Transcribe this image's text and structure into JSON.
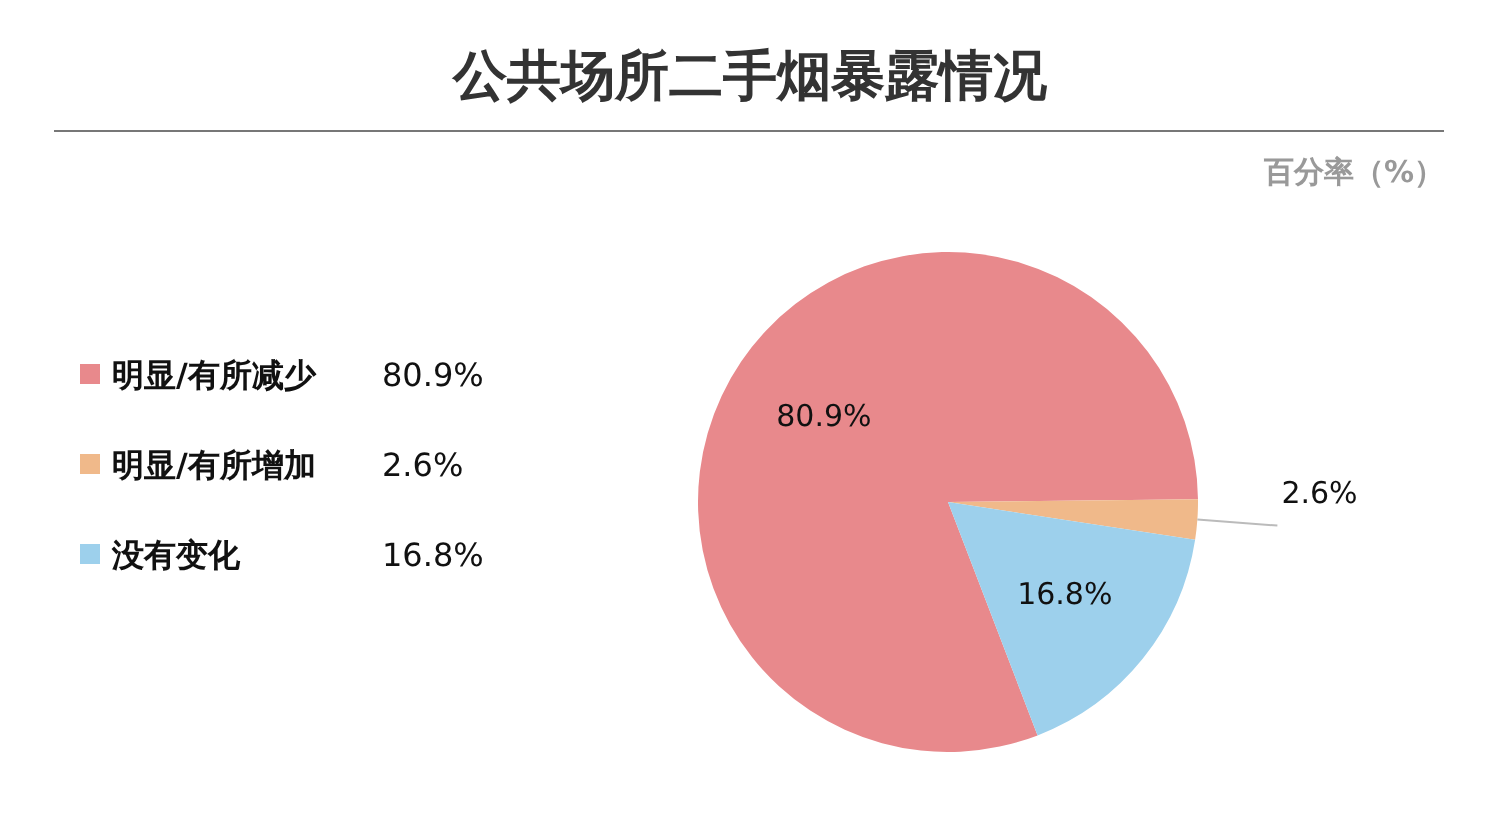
{
  "chart_data": {
    "type": "pie",
    "title": "公共场所二手烟暴露情况",
    "subtitle": "百分率（%）",
    "categories": [
      "明显/有所减少",
      "明显/有所增加",
      "没有变化"
    ],
    "values": [
      80.9,
      2.6,
      16.8
    ],
    "colors": [
      "#e8898c",
      "#f0b98a",
      "#9dd0ec"
    ],
    "value_labels": [
      "80.9%",
      "2.6%",
      "16.8%"
    ],
    "legend": "left"
  }
}
